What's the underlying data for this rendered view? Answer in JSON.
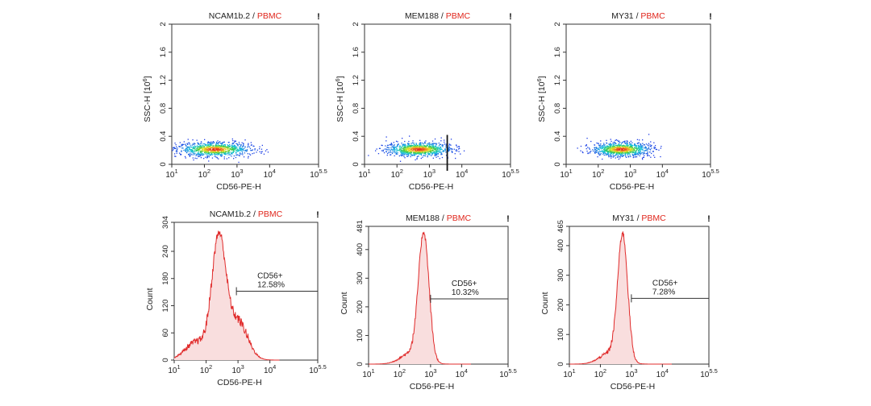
{
  "colors": {
    "title_black": "#222222",
    "title_red": "#e0261c",
    "axis": "#333333",
    "histogram_line": "#e02b2b",
    "histogram_fill": "#f9dede",
    "gate": "#333333"
  },
  "chart_data": [
    {
      "type": "scatter",
      "title_main": "NCAM1b.2",
      "title_sep": " / ",
      "title_sub": "PBMC",
      "flag": "!",
      "xlabel": "CD56-PE-H",
      "ylabel": "SSC-H [10",
      "ylabel_exp": "6",
      "ylabel_end": "]",
      "x_log_range": [
        1,
        5.5
      ],
      "x_ticks": [
        1,
        2,
        3,
        4,
        5.5
      ],
      "x_tick_base": "10",
      "x_tick_exps": [
        "1",
        "2",
        "3",
        "4",
        "5.5"
      ],
      "y_range": [
        0,
        2
      ],
      "y_ticks": [
        "0",
        "0.4",
        "0.8",
        "1.2",
        "1.6",
        "2"
      ],
      "cluster": {
        "x_center_log": 2.3,
        "x_spread_log": 0.55,
        "y_center": 0.22,
        "y_spread": 0.05,
        "x_max_log": 4.1
      },
      "gate_marker": false
    },
    {
      "type": "scatter",
      "title_main": "MEM188",
      "title_sep": " / ",
      "title_sub": "PBMC",
      "flag": "!",
      "xlabel": "CD56-PE-H",
      "ylabel": "SSC-H [10",
      "ylabel_exp": "6",
      "ylabel_end": "]",
      "x_log_range": [
        1,
        5.5
      ],
      "x_ticks": [
        1,
        2,
        3,
        4,
        5.5
      ],
      "x_tick_base": "10",
      "x_tick_exps": [
        "1",
        "2",
        "3",
        "4",
        "5.5"
      ],
      "y_range": [
        0,
        2
      ],
      "y_ticks": [
        "0",
        "0.4",
        "0.8",
        "1.2",
        "1.6",
        "2"
      ],
      "cluster": {
        "x_center_log": 2.65,
        "x_spread_log": 0.5,
        "y_center": 0.22,
        "y_spread": 0.05,
        "x_max_log": 4.1
      },
      "gate_marker": true,
      "gate_marker_log": 3.55
    },
    {
      "type": "scatter",
      "title_main": "MY31",
      "title_sep": " / ",
      "title_sub": "PBMC",
      "flag": "!",
      "xlabel": "CD56-PE-H",
      "ylabel": "SSC-H [10",
      "ylabel_exp": "6",
      "ylabel_end": "]",
      "x_log_range": [
        1,
        5.5
      ],
      "x_ticks": [
        1,
        2,
        3,
        4,
        5.5
      ],
      "x_tick_base": "10",
      "x_tick_exps": [
        "1",
        "2",
        "3",
        "4",
        "5.5"
      ],
      "y_range": [
        0,
        2
      ],
      "y_ticks": [
        "0",
        "0.4",
        "0.8",
        "1.2",
        "1.6",
        "2"
      ],
      "cluster": {
        "x_center_log": 2.7,
        "x_spread_log": 0.45,
        "y_center": 0.22,
        "y_spread": 0.05,
        "x_max_log": 4.0
      },
      "gate_marker": false
    },
    {
      "type": "area",
      "title_main": "NCAM1b.2",
      "title_sep": " / ",
      "title_sub": "PBMC",
      "flag": "!",
      "xlabel": "CD56-PE-H",
      "ylabel": "Count",
      "x_log_range": [
        1,
        5.5
      ],
      "x_ticks": [
        1,
        2,
        3,
        4,
        5.5
      ],
      "x_tick_base": "10",
      "x_tick_exps": [
        "1",
        "2",
        "3",
        "4",
        "5.5"
      ],
      "y_range": [
        0,
        304
      ],
      "y_ticks": [
        "0",
        "60",
        "120",
        "180",
        "240",
        "304"
      ],
      "y_tick_values": [
        0,
        60,
        120,
        180,
        240,
        304
      ],
      "peaks": [
        {
          "center_log": 2.4,
          "width_log": 0.22,
          "height": 265
        },
        {
          "center_log": 3.0,
          "width_log": 0.3,
          "height": 85
        },
        {
          "center_log": 1.7,
          "width_log": 0.35,
          "height": 40
        }
      ],
      "gate_label": "CD56+",
      "gate_value": "12.58%",
      "gate_start_log": 2.95,
      "gate_end_log": 5.5,
      "gate_y_count": 152
    },
    {
      "type": "area",
      "title_main": "MEM188",
      "title_sep": " / ",
      "title_sub": "PBMC",
      "flag": "!",
      "xlabel": "CD56-PE-H",
      "ylabel": "Count",
      "x_log_range": [
        1,
        5.5
      ],
      "x_ticks": [
        1,
        2,
        3,
        4,
        5.5
      ],
      "x_tick_base": "10",
      "x_tick_exps": [
        "1",
        "2",
        "3",
        "4",
        "5.5"
      ],
      "y_range": [
        0,
        481
      ],
      "y_ticks": [
        "0",
        "100",
        "200",
        "300",
        "400",
        "481"
      ],
      "y_tick_values": [
        0,
        100,
        200,
        300,
        400,
        481
      ],
      "peaks": [
        {
          "center_log": 2.78,
          "width_log": 0.17,
          "height": 440
        },
        {
          "center_log": 2.4,
          "width_log": 0.35,
          "height": 40
        }
      ],
      "gate_label": "CD56+",
      "gate_value": "10.32%",
      "gate_start_log": 3.0,
      "gate_end_log": 5.5,
      "gate_y_count": 228
    },
    {
      "type": "area",
      "title_main": "MY31",
      "title_sep": " / ",
      "title_sub": "PBMC",
      "flag": "!",
      "xlabel": "CD56-PE-H",
      "ylabel": "Count",
      "x_log_range": [
        1,
        5.5
      ],
      "x_ticks": [
        1,
        2,
        3,
        4,
        5.5
      ],
      "x_tick_base": "10",
      "x_tick_exps": [
        "1",
        "2",
        "3",
        "4",
        "5.5"
      ],
      "y_range": [
        0,
        465
      ],
      "y_ticks": [
        "0",
        "100",
        "200",
        "300",
        "400",
        "465"
      ],
      "y_tick_values": [
        0,
        100,
        200,
        300,
        400,
        465
      ],
      "peaks": [
        {
          "center_log": 2.72,
          "width_log": 0.16,
          "height": 420
        },
        {
          "center_log": 2.35,
          "width_log": 0.35,
          "height": 40
        }
      ],
      "gate_label": "CD56+",
      "gate_value": "7.28%",
      "gate_start_log": 3.0,
      "gate_end_log": 5.5,
      "gate_y_count": 222
    }
  ]
}
